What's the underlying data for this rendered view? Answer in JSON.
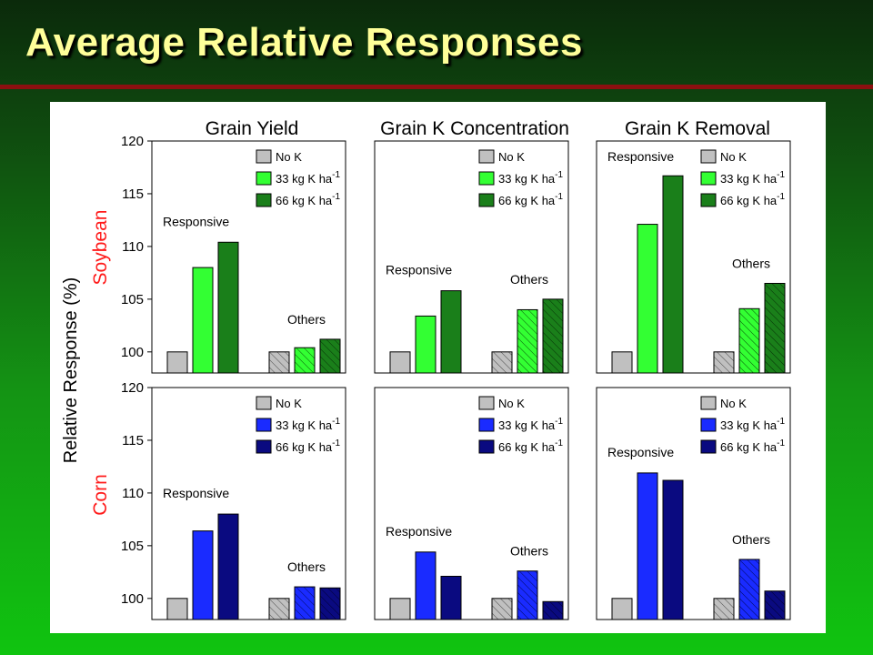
{
  "slide": {
    "title": "Average Relative Responses"
  },
  "colors": {
    "nok": "#c0c0c0",
    "soy33": "#33ff33",
    "soy66": "#1a7f1a",
    "corn33": "#1a2bff",
    "corn66": "#0a0a80",
    "soy_label": "#ff1a1a",
    "corn_label": "#ff1a1a"
  },
  "chart_data": [
    {
      "type": "bar",
      "title": "Grain Yield",
      "crop": "Soybean",
      "ylabel": "Relative Response (%)",
      "ylim": [
        98,
        120
      ],
      "yticks": [
        100,
        105,
        110,
        115,
        120
      ],
      "categories": [
        "Responsive",
        "Others"
      ],
      "series": [
        {
          "name": "No K",
          "values": [
            100,
            100
          ]
        },
        {
          "name": "33 kg K ha-1",
          "values": [
            108.0,
            100.4
          ]
        },
        {
          "name": "66 kg K ha-1",
          "values": [
            110.4,
            101.2
          ]
        }
      ],
      "legend": [
        "No K",
        "33 kg K ha",
        "66 kg K ha"
      ],
      "legend_sup": "-1"
    },
    {
      "type": "bar",
      "title": "Grain K Concentration",
      "crop": "Soybean",
      "ylim": [
        98,
        120
      ],
      "yticks": [
        100,
        105,
        110,
        115,
        120
      ],
      "categories": [
        "Responsive",
        "Others"
      ],
      "series": [
        {
          "name": "No K",
          "values": [
            100,
            100
          ]
        },
        {
          "name": "33 kg K ha-1",
          "values": [
            103.4,
            104.0
          ]
        },
        {
          "name": "66 kg K ha-1",
          "values": [
            105.8,
            105.0
          ]
        }
      ],
      "legend": [
        "No K",
        "33 kg K ha",
        "66 kg K ha"
      ],
      "legend_sup": "-1"
    },
    {
      "type": "bar",
      "title": "Grain K Removal",
      "crop": "Soybean",
      "ylim": [
        98,
        120
      ],
      "yticks": [
        100,
        105,
        110,
        115,
        120
      ],
      "categories": [
        "Responsive",
        "Others"
      ],
      "series": [
        {
          "name": "No K",
          "values": [
            100,
            100
          ]
        },
        {
          "name": "33 kg K ha-1",
          "values": [
            112.1,
            104.1
          ]
        },
        {
          "name": "66 kg K ha-1",
          "values": [
            116.7,
            106.5
          ]
        }
      ],
      "legend": [
        "No K",
        "33 kg K ha",
        "66 kg K ha"
      ],
      "legend_sup": "-1"
    },
    {
      "type": "bar",
      "title": "Grain Yield",
      "crop": "Corn",
      "ylim": [
        98,
        120
      ],
      "yticks": [
        100,
        105,
        110,
        115,
        120
      ],
      "categories": [
        "Responsive",
        "Others"
      ],
      "series": [
        {
          "name": "No K",
          "values": [
            100,
            100
          ]
        },
        {
          "name": "33 kg K ha-1",
          "values": [
            106.4,
            101.1
          ]
        },
        {
          "name": "66 kg K ha-1",
          "values": [
            108.0,
            101.0
          ]
        }
      ],
      "legend": [
        "No K",
        "33 kg K ha",
        "66 kg K ha"
      ],
      "legend_sup": "-1"
    },
    {
      "type": "bar",
      "title": "Grain K Concentration",
      "crop": "Corn",
      "ylim": [
        98,
        120
      ],
      "yticks": [
        100,
        105,
        110,
        115,
        120
      ],
      "categories": [
        "Responsive",
        "Others"
      ],
      "series": [
        {
          "name": "No K",
          "values": [
            100,
            100
          ]
        },
        {
          "name": "33 kg K ha-1",
          "values": [
            104.4,
            102.6
          ]
        },
        {
          "name": "66 kg K ha-1",
          "values": [
            102.1,
            99.7
          ]
        }
      ],
      "legend": [
        "No K",
        "33 kg K ha",
        "66 kg K ha"
      ],
      "legend_sup": "-1"
    },
    {
      "type": "bar",
      "title": "Grain K Removal",
      "crop": "Corn",
      "ylim": [
        98,
        120
      ],
      "yticks": [
        100,
        105,
        110,
        115,
        120
      ],
      "categories": [
        "Responsive",
        "Others"
      ],
      "series": [
        {
          "name": "No K",
          "values": [
            100,
            100
          ]
        },
        {
          "name": "33 kg K ha-1",
          "values": [
            111.9,
            103.7
          ]
        },
        {
          "name": "66 kg K ha-1",
          "values": [
            111.2,
            100.7
          ]
        }
      ],
      "legend": [
        "No K",
        "33 kg K ha",
        "66 kg K ha"
      ],
      "legend_sup": "-1"
    }
  ],
  "labels": {
    "ylabel": "Relative Response (%)",
    "soybean": "Soybean",
    "corn": "Corn",
    "responsive": "Responsive",
    "others": "Others",
    "col_titles": [
      "Grain Yield",
      "Grain K Concentration",
      "Grain K Removal"
    ]
  }
}
